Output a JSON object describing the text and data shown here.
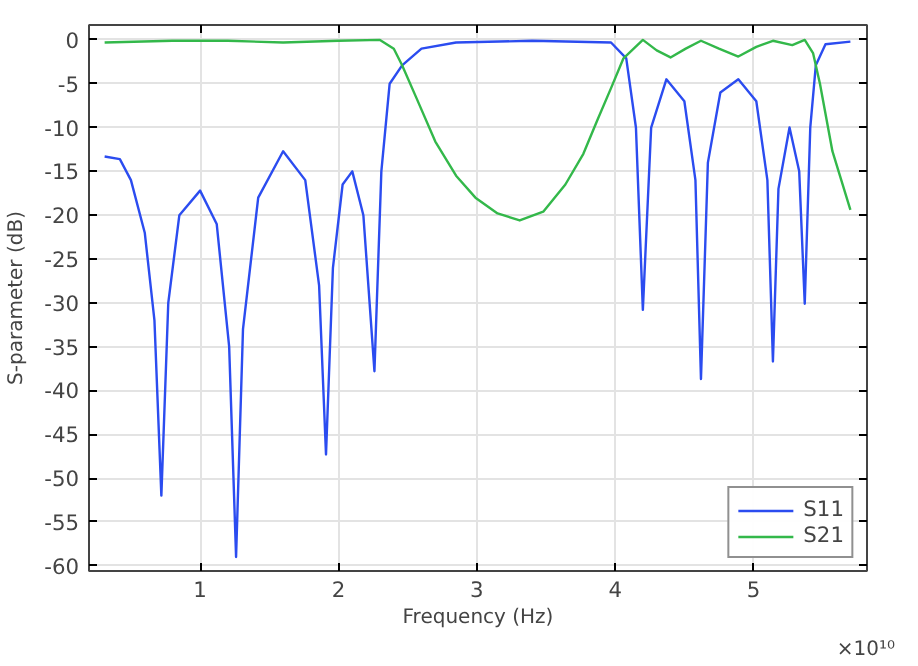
{
  "chart_data": {
    "type": "line",
    "xlabel": "Frequency (Hz)",
    "ylabel": "S-parameter (dB)",
    "annotations": [
      "×10¹⁰"
    ],
    "xlim": [
      0.197,
      5.82
    ],
    "ylim": [
      -60.6,
      1.7
    ],
    "xticks": [
      1,
      2,
      3,
      4,
      5
    ],
    "yticks": [
      0,
      -5,
      -10,
      -15,
      -20,
      -25,
      -30,
      -35,
      -40,
      -45,
      -50,
      -55,
      -60
    ],
    "grid": true,
    "legend": "bottom right",
    "line_style": "solid",
    "series": [
      {
        "name": "S11",
        "color": "#2b4cf0",
        "x": [
          0.31,
          0.42,
          0.5,
          0.6,
          0.67,
          0.72,
          0.77,
          0.85,
          1.0,
          1.12,
          1.21,
          1.26,
          1.31,
          1.42,
          1.6,
          1.76,
          1.86,
          1.91,
          1.96,
          2.03,
          2.1,
          2.18,
          2.26,
          2.31,
          2.37,
          2.46,
          2.6,
          2.85,
          3.4,
          3.97,
          4.08,
          4.15,
          4.2,
          4.26,
          4.37,
          4.5,
          4.58,
          4.62,
          4.67,
          4.76,
          4.89,
          5.02,
          5.1,
          5.14,
          5.18,
          5.26,
          5.33,
          5.37,
          5.41,
          5.45,
          5.52,
          5.7
        ],
        "values": [
          -13.3,
          -13.6,
          -16,
          -22,
          -32,
          -52,
          -30,
          -20,
          -17.2,
          -21,
          -35,
          -59,
          -33,
          -18,
          -12.7,
          -16,
          -28,
          -47.3,
          -26,
          -16.5,
          -15,
          -20,
          -37.8,
          -15,
          -5,
          -2.9,
          -1,
          -0.3,
          -0.1,
          -0.3,
          -2.1,
          -10,
          -30.8,
          -10,
          -4.5,
          -7,
          -16,
          -38.7,
          -14,
          -6,
          -4.5,
          -7,
          -16,
          -36.7,
          -17,
          -10,
          -15,
          -30.1,
          -10,
          -2.9,
          -0.5,
          -0.2
        ]
      },
      {
        "name": "S21",
        "color": "#33b84a",
        "x": [
          0.31,
          0.8,
          1.2,
          1.6,
          2.0,
          2.3,
          2.4,
          2.46,
          2.56,
          2.7,
          2.85,
          2.99,
          3.15,
          3.31,
          3.48,
          3.64,
          3.77,
          3.87,
          3.97,
          4.06,
          4.2,
          4.3,
          4.4,
          4.51,
          4.62,
          4.75,
          4.89,
          5.02,
          5.14,
          5.28,
          5.37,
          5.43,
          5.48,
          5.57,
          5.7
        ],
        "values": [
          -0.3,
          -0.1,
          -0.1,
          -0.3,
          -0.1,
          0,
          -1,
          -2.9,
          -6.5,
          -11.6,
          -15.5,
          -18,
          -19.8,
          -20.6,
          -19.6,
          -16.5,
          -13,
          -9.2,
          -5.5,
          -2.1,
          0,
          -1.2,
          -2,
          -1,
          -0.1,
          -1,
          -1.9,
          -0.8,
          -0.1,
          -0.6,
          0,
          -1.5,
          -5,
          -12.7,
          -19.4
        ]
      }
    ]
  }
}
